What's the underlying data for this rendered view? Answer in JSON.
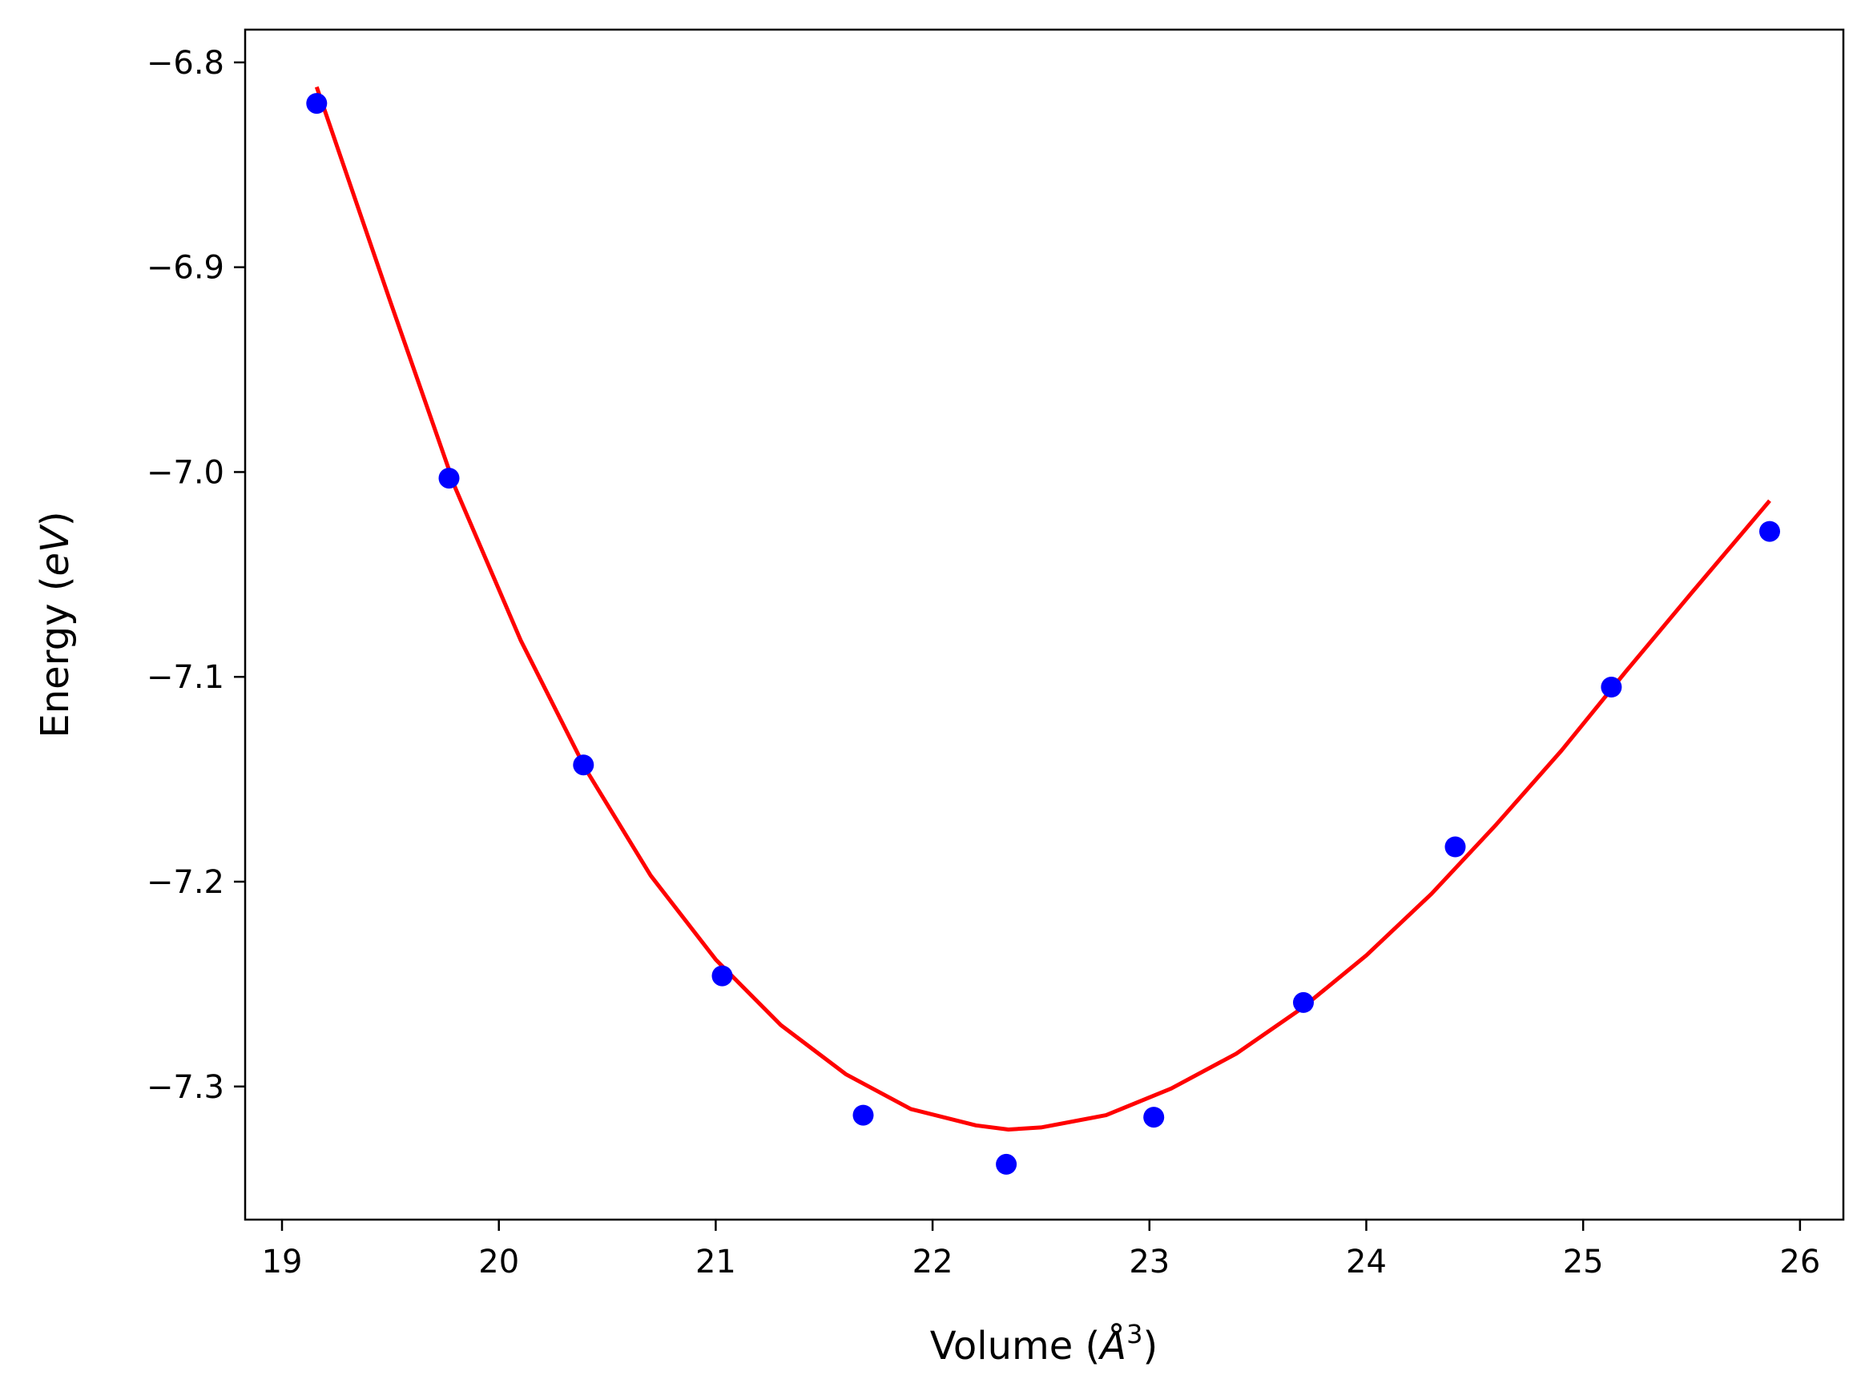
{
  "chart_data": {
    "type": "scatter",
    "xlabel": "Volume (Å³)",
    "xlabel_parts": {
      "prefix": "Volume (",
      "symbol": "Å",
      "exponent": "3",
      "suffix": ")"
    },
    "ylabel": "Energy (eV)",
    "ylabel_parts": {
      "prefix": "Energy (",
      "unit": "eV",
      "suffix": ")"
    },
    "xlim": [
      18.83,
      26.2
    ],
    "ylim": [
      -7.365,
      -6.784
    ],
    "xticks": [
      19,
      20,
      21,
      22,
      23,
      24,
      25,
      26
    ],
    "xtick_labels": [
      "19",
      "20",
      "21",
      "22",
      "23",
      "24",
      "25",
      "26"
    ],
    "yticks": [
      -7.3,
      -7.2,
      -7.1,
      -7.0,
      -6.9,
      -6.8
    ],
    "ytick_labels": [
      "−7.3",
      "−7.2",
      "−7.1",
      "−7.0",
      "−6.9",
      "−6.8"
    ],
    "grid": false,
    "series": [
      {
        "kind": "points",
        "color": "#0000ff",
        "x": [
          19.16,
          19.77,
          20.39,
          21.03,
          21.68,
          22.34,
          23.02,
          23.71,
          24.41,
          25.13,
          25.86
        ],
        "y": [
          -6.82,
          -7.003,
          -7.143,
          -7.246,
          -7.314,
          -7.338,
          -7.315,
          -7.259,
          -7.183,
          -7.105,
          -7.029
        ]
      },
      {
        "kind": "fit-curve",
        "color": "#ff0000",
        "x": [
          19.16,
          19.5,
          19.8,
          20.1,
          20.4,
          20.7,
          21.0,
          21.3,
          21.6,
          21.9,
          22.2,
          22.35,
          22.5,
          22.8,
          23.1,
          23.4,
          23.7,
          24.0,
          24.3,
          24.6,
          24.9,
          25.2,
          25.5,
          25.86
        ],
        "y": [
          -6.812,
          -6.917,
          -7.008,
          -7.082,
          -7.145,
          -7.197,
          -7.238,
          -7.27,
          -7.294,
          -7.311,
          -7.319,
          -7.321,
          -7.32,
          -7.314,
          -7.301,
          -7.284,
          -7.262,
          -7.236,
          -7.206,
          -7.172,
          -7.136,
          -7.097,
          -7.059,
          -7.014
        ]
      }
    ]
  }
}
